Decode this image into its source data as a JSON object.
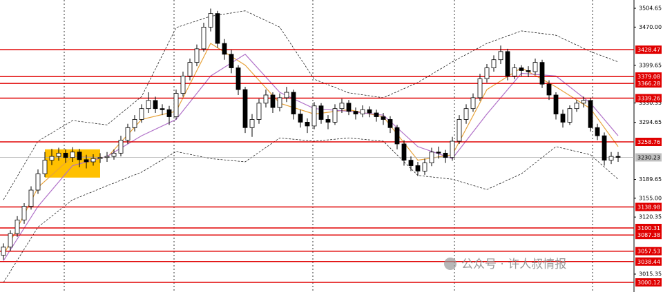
{
  "chart_data": {
    "type": "candlestick",
    "ylim": [
      2982.4,
      3519.9
    ],
    "yticks": [
      3504.65,
      {
        "value": 3470,
        "label": "3470.00"
      },
      3399.65,
      3330.35,
      3294.65,
      3189.65,
      {
        "value": 3155,
        "label": "3155.00"
      },
      3120.35,
      3015.35
    ],
    "candles": {
      "open": [
        3050,
        3065,
        3090,
        3115,
        3140,
        3170,
        3200,
        3225,
        3232,
        3238,
        3230,
        3240,
        3226,
        3222,
        3228,
        3230,
        3232,
        3238,
        3262,
        3285,
        3300,
        3320,
        3335,
        3320,
        3318,
        3305,
        3348,
        3380,
        3405,
        3430,
        3470,
        3495,
        3440,
        3420,
        3395,
        3355,
        3285,
        3300,
        3330,
        3345,
        3322,
        3340,
        3350,
        3310,
        3295,
        3288,
        3325,
        3300,
        3295,
        3320,
        3330,
        3315,
        3310,
        3318,
        3312,
        3305,
        3300,
        3285,
        3255,
        3225,
        3215,
        3205,
        3220,
        3240,
        3238,
        3230,
        3260,
        3300,
        3320,
        3340,
        3375,
        3395,
        3410,
        3425,
        3380,
        3395,
        3390,
        3388,
        3405,
        3365,
        3345,
        3310,
        3295,
        3320,
        3330,
        3335,
        3285,
        3270,
        3225,
        3232
      ],
      "high": [
        3072,
        3096,
        3122,
        3146,
        3177,
        3208,
        3240,
        3246,
        3248,
        3245,
        3249,
        3246,
        3235,
        3236,
        3238,
        3240,
        3245,
        3270,
        3292,
        3308,
        3328,
        3350,
        3342,
        3328,
        3325,
        3355,
        3388,
        3412,
        3438,
        3478,
        3504,
        3500,
        3448,
        3428,
        3400,
        3360,
        3310,
        3338,
        3355,
        3350,
        3348,
        3360,
        3355,
        3318,
        3302,
        3332,
        3330,
        3308,
        3328,
        3338,
        3336,
        3322,
        3326,
        3324,
        3318,
        3312,
        3306,
        3290,
        3262,
        3232,
        3222,
        3228,
        3248,
        3250,
        3244,
        3268,
        3308,
        3328,
        3348,
        3384,
        3402,
        3418,
        3436,
        3430,
        3402,
        3400,
        3398,
        3412,
        3410,
        3372,
        3350,
        3318,
        3326,
        3336,
        3342,
        3340,
        3292,
        3276,
        3240,
        3240
      ],
      "low": [
        3042,
        3058,
        3084,
        3108,
        3134,
        3163,
        3194,
        3216,
        3224,
        3220,
        3222,
        3212,
        3210,
        3215,
        3220,
        3222,
        3226,
        3232,
        3255,
        3278,
        3294,
        3312,
        3312,
        3308,
        3290,
        3300,
        3342,
        3372,
        3398,
        3425,
        3462,
        3432,
        3410,
        3385,
        3345,
        3275,
        3268,
        3292,
        3322,
        3312,
        3315,
        3332,
        3300,
        3285,
        3275,
        3282,
        3292,
        3282,
        3290,
        3312,
        3308,
        3300,
        3304,
        3304,
        3296,
        3290,
        3275,
        3245,
        3215,
        3205,
        3196,
        3198,
        3214,
        3228,
        3220,
        3224,
        3255,
        3292,
        3314,
        3334,
        3368,
        3388,
        3402,
        3372,
        3374,
        3380,
        3378,
        3382,
        3358,
        3336,
        3300,
        3285,
        3290,
        3314,
        3322,
        3278,
        3262,
        3215,
        3218,
        3222
      ],
      "close": [
        3065,
        3090,
        3115,
        3140,
        3170,
        3200,
        3225,
        3232,
        3238,
        3230,
        3240,
        3226,
        3222,
        3228,
        3230,
        3232,
        3238,
        3262,
        3285,
        3300,
        3320,
        3335,
        3320,
        3318,
        3305,
        3348,
        3380,
        3405,
        3430,
        3470,
        3495,
        3440,
        3420,
        3395,
        3355,
        3285,
        3300,
        3330,
        3345,
        3322,
        3340,
        3350,
        3310,
        3295,
        3288,
        3325,
        3300,
        3295,
        3320,
        3330,
        3315,
        3310,
        3318,
        3312,
        3305,
        3300,
        3285,
        3255,
        3225,
        3215,
        3205,
        3220,
        3240,
        3238,
        3230,
        3260,
        3300,
        3320,
        3340,
        3375,
        3395,
        3410,
        3425,
        3380,
        3395,
        3390,
        3388,
        3405,
        3365,
        3345,
        3310,
        3295,
        3320,
        3330,
        3335,
        3285,
        3270,
        3225,
        3232,
        3230.23
      ]
    },
    "line_x": [
      0,
      5,
      10,
      15,
      20,
      25,
      30,
      35,
      40,
      45,
      50,
      55,
      60,
      65,
      70,
      75,
      80,
      85,
      89
    ],
    "lines": [
      {
        "color": "#e8a33a",
        "dash": false,
        "values": [
          3050,
          3175,
          3232,
          3230,
          3300,
          3315,
          3440,
          3400,
          3330,
          3310,
          3318,
          3305,
          3225,
          3235,
          3355,
          3395,
          3360,
          3320,
          3250
        ]
      },
      {
        "color": "#b070c8",
        "dash": false,
        "values": [
          3040,
          3140,
          3215,
          3232,
          3270,
          3300,
          3380,
          3420,
          3350,
          3320,
          3315,
          3308,
          3250,
          3228,
          3310,
          3385,
          3380,
          3330,
          3270
        ]
      },
      {
        "color": "#222222",
        "dash": true,
        "values": [
          3152,
          3260,
          3298,
          3290,
          3342,
          3469,
          3490,
          3500,
          3470,
          3374,
          3349,
          3340,
          3368,
          3406,
          3440,
          3463,
          3455,
          3425,
          3406
        ]
      },
      {
        "color": "#222222",
        "dash": true,
        "values": [
          3000,
          3102,
          3152,
          3178,
          3203,
          3241,
          3228,
          3222,
          3266,
          3260,
          3266,
          3260,
          3197,
          3190,
          3171,
          3200,
          3250,
          3235,
          3190
        ]
      }
    ],
    "levels": [
      3428.47,
      3379.08,
      3366.28,
      3339.26,
      3258.76,
      3138.98,
      3100.31,
      3087.38,
      3057.53,
      3038.44,
      3000.12
    ],
    "level_color": "#e00000",
    "current_price": 3230.23,
    "highlight": {
      "xlim": [
        6,
        14
      ],
      "ylim": [
        3193,
        3245
      ],
      "color": "#ffc000"
    },
    "watermark": "公众号 · 许人叔情报"
  }
}
